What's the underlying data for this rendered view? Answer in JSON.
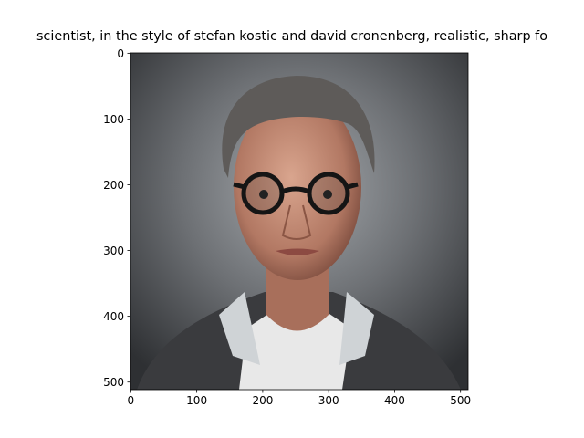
{
  "chart_data": {
    "type": "image",
    "title": "scientist,  in the style of stefan kostic and david cronenberg, realistic, sharp fo",
    "xlim": [
      -0.5,
      511.5
    ],
    "ylim": [
      511.5,
      -0.5
    ],
    "xticks": [
      0,
      100,
      200,
      300,
      400,
      500
    ],
    "yticks": [
      0,
      100,
      200,
      300,
      400,
      500
    ]
  }
}
